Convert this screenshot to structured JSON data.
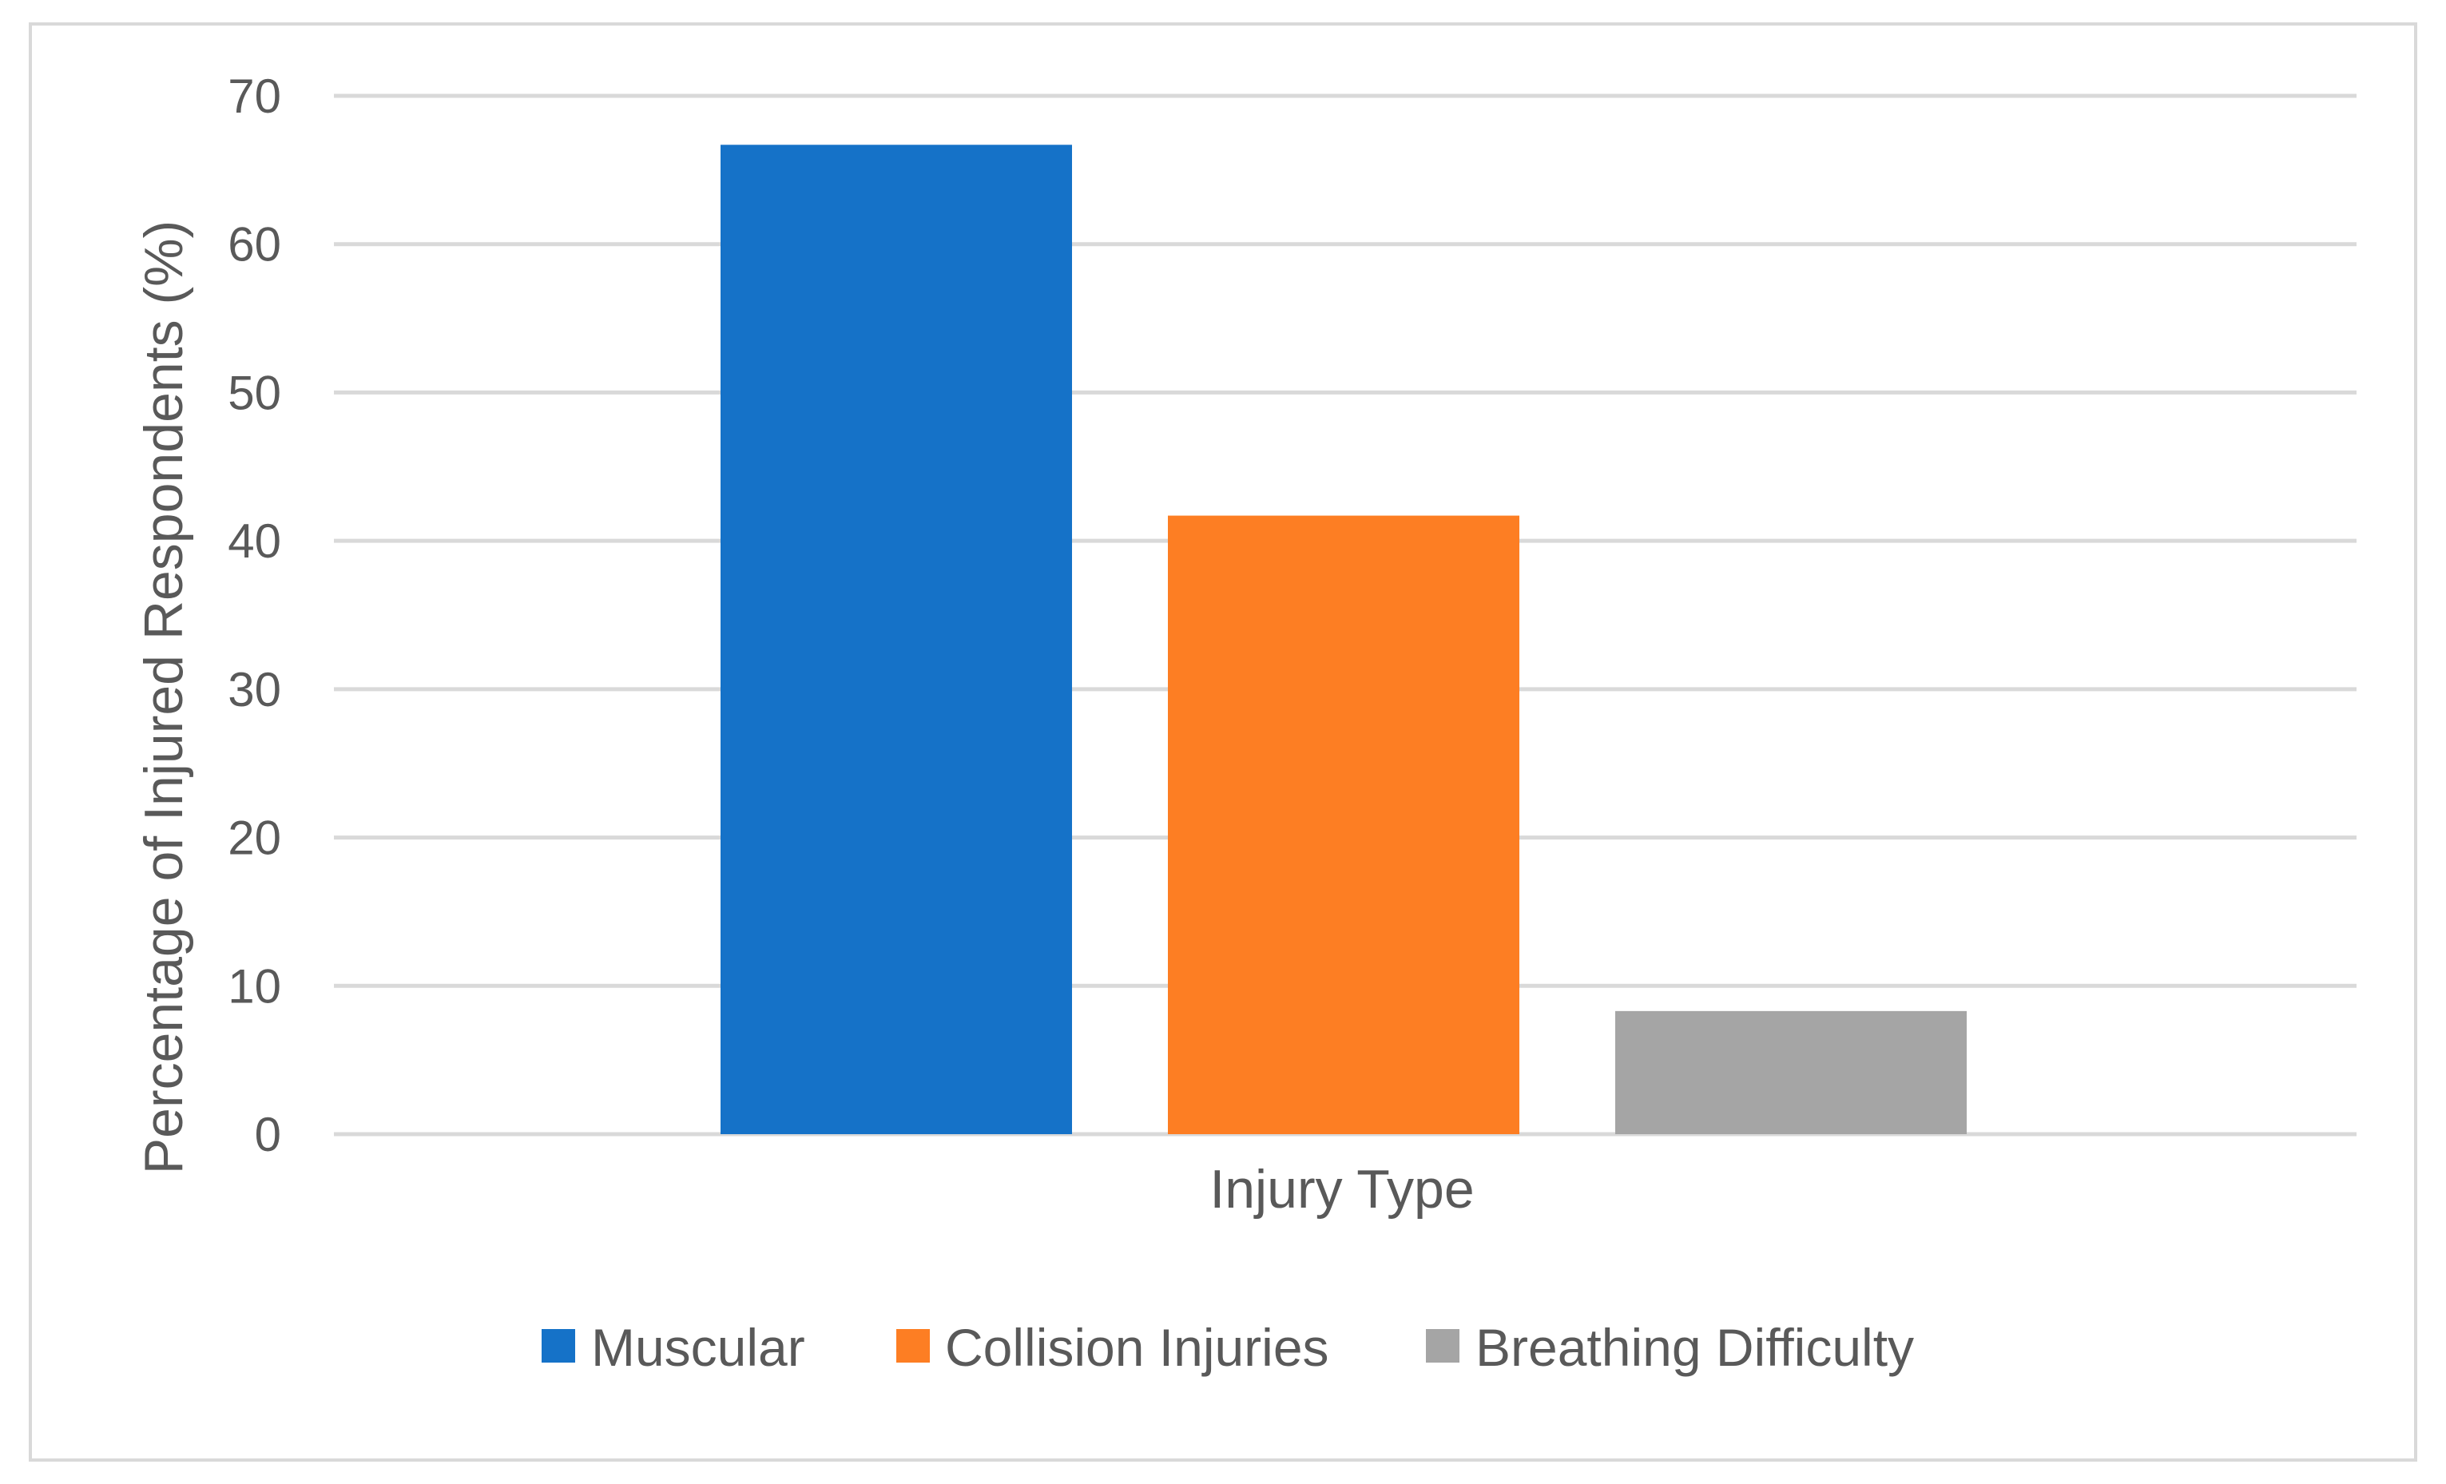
{
  "chart_data": {
    "type": "bar",
    "title": "",
    "xlabel": "Injury Type",
    "ylabel": "Percentage of Injured Respondents (%)",
    "ylim": [
      0,
      70
    ],
    "yticks": [
      0,
      10,
      20,
      30,
      40,
      50,
      60,
      70
    ],
    "grid": true,
    "legend_position": "bottom",
    "series": [
      {
        "name": "Muscular",
        "values": [
          66.7
        ],
        "color": "#1572c8"
      },
      {
        "name": "Collision Injuries",
        "values": [
          41.7
        ],
        "color": "#fd7e23"
      },
      {
        "name": "Breathing Difficulty",
        "values": [
          8.3
        ],
        "color": "#a5a5a5"
      }
    ]
  }
}
